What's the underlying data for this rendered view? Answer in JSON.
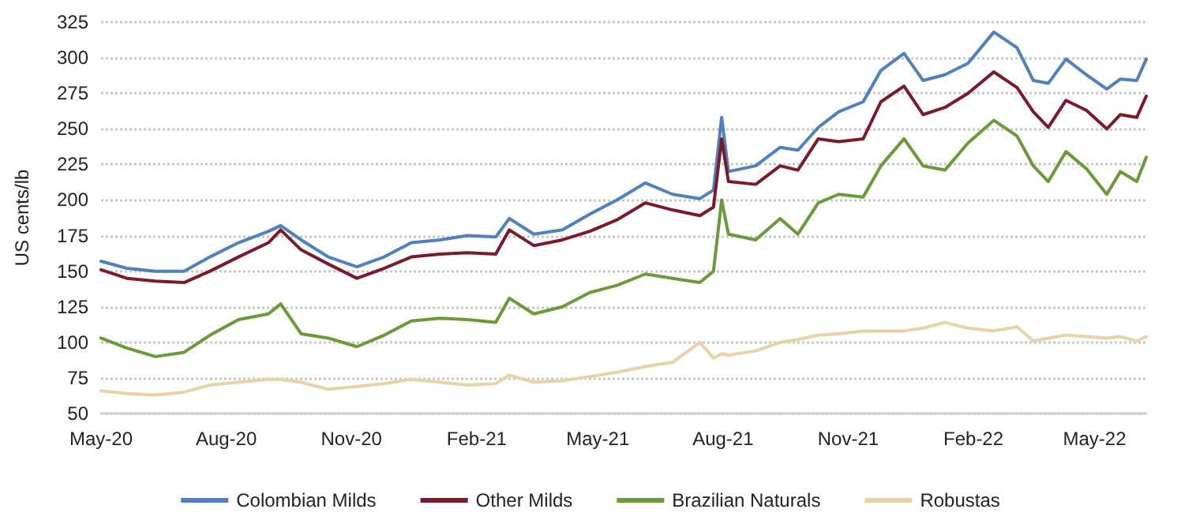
{
  "chart_data": {
    "type": "line",
    "ylabel": "US cents/lb",
    "x": [
      "2020-05-01",
      "2020-05-20",
      "2020-06-10",
      "2020-07-01",
      "2020-07-20",
      "2020-08-10",
      "2020-09-01",
      "2020-09-10",
      "2020-09-25",
      "2020-10-15",
      "2020-11-05",
      "2020-11-25",
      "2020-12-15",
      "2021-01-05",
      "2021-01-25",
      "2021-02-15",
      "2021-02-25",
      "2021-03-15",
      "2021-04-05",
      "2021-04-25",
      "2021-05-15",
      "2021-06-05",
      "2021-06-25",
      "2021-07-15",
      "2021-07-25",
      "2021-07-31",
      "2021-08-05",
      "2021-08-25",
      "2021-09-12",
      "2021-09-25",
      "2021-10-10",
      "2021-10-25",
      "2021-11-12",
      "2021-11-25",
      "2021-12-12",
      "2021-12-26",
      "2022-01-11",
      "2022-01-28",
      "2022-02-16",
      "2022-03-05",
      "2022-03-17",
      "2022-03-28",
      "2022-04-10",
      "2022-04-25",
      "2022-05-10",
      "2022-05-20",
      "2022-06-01",
      "2022-06-08"
    ],
    "series": [
      {
        "name": "Colombian Milds",
        "color": "#4f81bd",
        "values": [
          157,
          152,
          150,
          150,
          160,
          170,
          178,
          182,
          172,
          160,
          153,
          160,
          170,
          172,
          175,
          174,
          187,
          176,
          179,
          190,
          200,
          212,
          204,
          201,
          207,
          258,
          220,
          224,
          237,
          235,
          251,
          262,
          269,
          291,
          303,
          284,
          288,
          296,
          318,
          307,
          284,
          282,
          299,
          288,
          278,
          285,
          284,
          299
        ]
      },
      {
        "name": "Other Milds",
        "color": "#7b1a2b",
        "values": [
          151,
          145,
          143,
          142,
          150,
          160,
          170,
          179,
          165,
          155,
          145,
          152,
          160,
          162,
          163,
          162,
          179,
          168,
          172,
          178,
          186,
          198,
          193,
          189,
          195,
          243,
          213,
          211,
          224,
          221,
          243,
          241,
          243,
          269,
          280,
          260,
          265,
          275,
          290,
          279,
          262,
          251,
          270,
          263,
          250,
          260,
          258,
          273
        ]
      },
      {
        "name": "Brazilian Naturals",
        "color": "#6a9a3a",
        "values": [
          103,
          96,
          90,
          93,
          105,
          116,
          120,
          127,
          106,
          103,
          97,
          105,
          115,
          117,
          116,
          114,
          131,
          120,
          125,
          135,
          140,
          148,
          145,
          142,
          150,
          200,
          176,
          172,
          187,
          176,
          198,
          204,
          202,
          224,
          243,
          224,
          221,
          240,
          256,
          245,
          224,
          213,
          234,
          222,
          204,
          220,
          213,
          230
        ]
      },
      {
        "name": "Robustas",
        "color": "#e8d3a8",
        "values": [
          66,
          64,
          63,
          65,
          70,
          72,
          74,
          74,
          72,
          67,
          69,
          71,
          74,
          72,
          70,
          71,
          77,
          72,
          73,
          76,
          79,
          83,
          86,
          100,
          89,
          92,
          91,
          94,
          100,
          102,
          105,
          106,
          108,
          108,
          108,
          110,
          114,
          110,
          108,
          111,
          101,
          103,
          105,
          104,
          103,
          104,
          101,
          104
        ]
      }
    ],
    "xlim": [
      "2020-05-01",
      "2022-06-08"
    ],
    "xticks": [
      {
        "value": "2020-05-01",
        "label": "May-20"
      },
      {
        "value": "2020-08-01",
        "label": "Aug-20"
      },
      {
        "value": "2020-11-01",
        "label": "Nov-20"
      },
      {
        "value": "2021-02-01",
        "label": "Feb-21"
      },
      {
        "value": "2021-05-01",
        "label": "May-21"
      },
      {
        "value": "2021-08-01",
        "label": "Aug-21"
      },
      {
        "value": "2021-11-01",
        "label": "Nov-21"
      },
      {
        "value": "2022-02-01",
        "label": "Feb-22"
      },
      {
        "value": "2022-05-01",
        "label": "May-22"
      }
    ],
    "ylim": [
      50,
      325
    ],
    "yticks": [
      50,
      75,
      100,
      125,
      150,
      175,
      200,
      225,
      250,
      275,
      300,
      325
    ],
    "grid": "y",
    "legend": "bottom",
    "marker": "none",
    "line_style": "solid"
  }
}
